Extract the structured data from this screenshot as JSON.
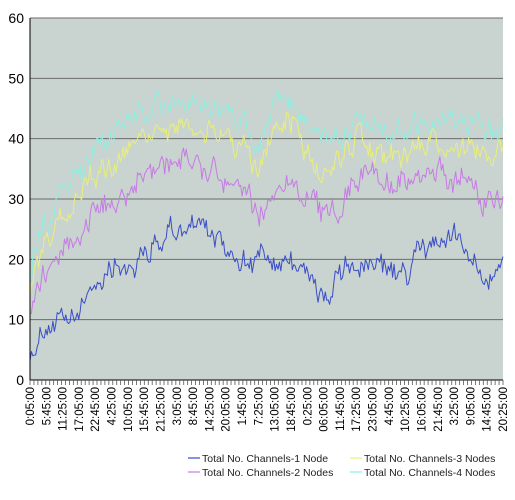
{
  "chart_data": {
    "type": "line",
    "title": "",
    "xlabel": "",
    "ylabel": "",
    "ylim": [
      0,
      60
    ],
    "y_ticks": [
      0,
      10,
      20,
      30,
      40,
      50,
      60
    ],
    "grid": "horizontal",
    "legend_position": "bottom-right",
    "x_tick_labels": [
      "0:05:00",
      "5:45:00",
      "11:25:00",
      "17:05:00",
      "22:45:00",
      "4:25:00",
      "10:05:00",
      "15:45:00",
      "21:25:00",
      "3:05:00",
      "8:45:00",
      "14:25:00",
      "20:05:00",
      "1:45:00",
      "7:25:00",
      "13:05:00",
      "18:45:00",
      "0:25:00",
      "06:05:00",
      "11:45:00",
      "17:25:00",
      "23:05:00",
      "4:45:00",
      "10:25:00",
      "16:05:00",
      "21:45:00",
      "3:25:00",
      "9:05:00",
      "14:45:00",
      "20:25:00"
    ],
    "x_tick_fractions": [
      0.0,
      0.0345,
      0.069,
      0.1034,
      0.1379,
      0.1724,
      0.2069,
      0.2414,
      0.2759,
      0.3103,
      0.3448,
      0.3793,
      0.4138,
      0.4483,
      0.4828,
      0.5172,
      0.5517,
      0.5862,
      0.6207,
      0.6552,
      0.6897,
      0.7241,
      0.7586,
      0.7931,
      0.8276,
      0.8621,
      0.8966,
      0.931,
      0.9655,
      1.0
    ],
    "x_fractions": [
      0.0,
      0.0345,
      0.069,
      0.1034,
      0.1379,
      0.1724,
      0.2069,
      0.2414,
      0.2759,
      0.3103,
      0.3448,
      0.3793,
      0.4138,
      0.4483,
      0.4828,
      0.5172,
      0.5517,
      0.5862,
      0.6207,
      0.6552,
      0.6897,
      0.7241,
      0.7586,
      0.7931,
      0.8276,
      0.8621,
      0.8966,
      0.931,
      0.9655,
      1.0
    ],
    "series": [
      {
        "name": "Total No. Channels-1 Node",
        "color": "#3a4ec8",
        "values": [
          5,
          9,
          9,
          11,
          16,
          19,
          19,
          21,
          23,
          25,
          26,
          24,
          22,
          20,
          20,
          19,
          20,
          18,
          13,
          17,
          19,
          19,
          18,
          17,
          22,
          22,
          24,
          21,
          17,
          19
        ]
      },
      {
        "name": "Total No. Channels-2 Nodes",
        "color": "#c77ae6",
        "values": [
          12,
          18,
          21,
          24,
          28,
          30,
          31,
          33,
          35,
          37,
          37,
          35,
          33,
          32,
          28,
          31,
          33,
          30,
          27,
          29,
          34,
          35,
          32,
          33,
          33,
          35,
          33,
          34,
          29,
          30
        ]
      },
      {
        "name": "Total No. Channels-3 Nodes",
        "color": "#e8ef7a",
        "values": [
          16,
          23,
          27,
          31,
          34,
          36,
          38,
          40,
          41,
          42,
          42,
          41,
          40,
          39,
          35,
          41,
          43,
          38,
          34,
          37,
          40,
          38,
          37,
          37,
          38,
          39,
          38,
          39,
          37,
          38
        ]
      },
      {
        "name": "Total No. Channels-4 Nodes",
        "color": "#8ef0e2",
        "values": [
          19,
          26,
          30,
          35,
          38,
          40,
          43,
          44,
          45,
          46,
          46,
          45,
          44,
          42,
          39,
          45,
          46,
          42,
          40,
          41,
          43,
          42,
          41,
          42,
          43,
          44,
          42,
          43,
          41,
          42
        ]
      }
    ]
  }
}
